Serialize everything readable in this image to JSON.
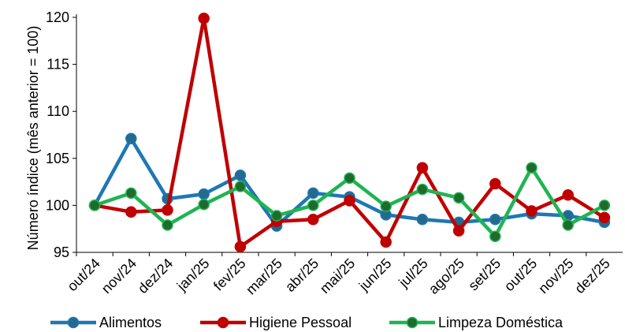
{
  "chart_data": {
    "type": "line",
    "title": "",
    "xlabel": "",
    "ylabel": "Número índice (mês anterior = 100)",
    "ylim": [
      95,
      120
    ],
    "yticks": [
      95,
      100,
      105,
      110,
      115,
      120
    ],
    "grid": false,
    "legend": "bottom",
    "categories": [
      "out/24",
      "nov/24",
      "dez/24",
      "jan/25",
      "fev/25",
      "mar/25",
      "abr/25",
      "mai/25",
      "jun/25",
      "jul/25",
      "ago/25",
      "set/25",
      "out/25",
      "nov/25",
      "dez/25"
    ],
    "series": [
      {
        "name": "Alimentos",
        "color": "#1f77b4",
        "marker_color": "#236a8e",
        "values": [
          100.0,
          107.1,
          100.7,
          101.2,
          103.2,
          97.8,
          101.3,
          100.9,
          99.0,
          98.5,
          98.2,
          98.5,
          99.1,
          98.9,
          98.2
        ]
      },
      {
        "name": "Higiene Pessoal",
        "color": "#c00000",
        "marker_color": "#c00000",
        "values": [
          100.0,
          99.3,
          99.5,
          119.9,
          95.6,
          98.3,
          98.5,
          100.5,
          96.1,
          104.0,
          97.3,
          102.3,
          99.4,
          101.1,
          98.7
        ]
      },
      {
        "name": "Limpeza Doméstica",
        "color": "#1fb453",
        "marker_color": "#1e6b2c",
        "values": [
          100.0,
          101.3,
          97.9,
          100.1,
          102.0,
          98.9,
          100.0,
          102.9,
          99.9,
          101.7,
          100.8,
          96.7,
          104.0,
          97.9,
          100.0
        ]
      }
    ]
  }
}
